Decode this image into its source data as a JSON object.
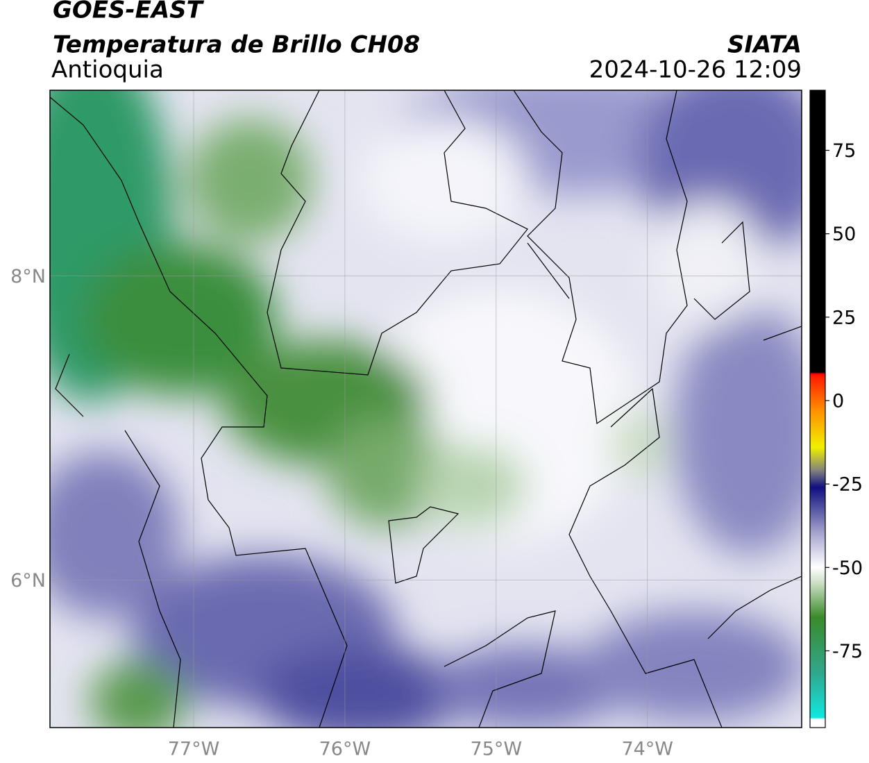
{
  "chart_data": {
    "type": "map",
    "title": "GOES-EAST",
    "subtitle": "Temperatura de Brillo CH08",
    "region": "Antioquia",
    "source": "SIATA",
    "datetime": "2024-10-26 12:09",
    "xlim": [
      -77.95,
      -72.98
    ],
    "ylim": [
      5.03,
      9.22
    ],
    "xticks": [
      {
        "value": -77,
        "label": "77°W"
      },
      {
        "value": -76,
        "label": "76°W"
      },
      {
        "value": -75,
        "label": "75°W"
      },
      {
        "value": -74,
        "label": "74°W"
      }
    ],
    "yticks": [
      {
        "value": 8,
        "label": "8°N"
      },
      {
        "value": 6,
        "label": "6°N"
      }
    ],
    "grid": true,
    "colorbar": {
      "lim": [
        -98,
        93
      ],
      "ticks": [
        75,
        50,
        25,
        0,
        -25,
        -50,
        -75
      ],
      "stops": [
        {
          "value": -98,
          "color": "#ffffff"
        },
        {
          "value": -95.5,
          "color": "#ffffff"
        },
        {
          "value": -95,
          "color": "#10e8e0"
        },
        {
          "value": -82,
          "color": "#30a890"
        },
        {
          "value": -65,
          "color": "#3a8a2a"
        },
        {
          "value": -55,
          "color": "#c8dcc0"
        },
        {
          "value": -50,
          "color": "#ffffff"
        },
        {
          "value": -40,
          "color": "#a8a8d0"
        },
        {
          "value": -32,
          "color": "#5050a0"
        },
        {
          "value": -26,
          "color": "#101080"
        },
        {
          "value": -21,
          "color": "#808080"
        },
        {
          "value": -14,
          "color": "#f0f000"
        },
        {
          "value": -3,
          "color": "#ff9000"
        },
        {
          "value": 7,
          "color": "#ff2000"
        },
        {
          "value": 8,
          "color": "#ff0000"
        },
        {
          "value": 8.5,
          "color": "#000000"
        },
        {
          "value": 93,
          "color": "#000000"
        }
      ]
    }
  }
}
